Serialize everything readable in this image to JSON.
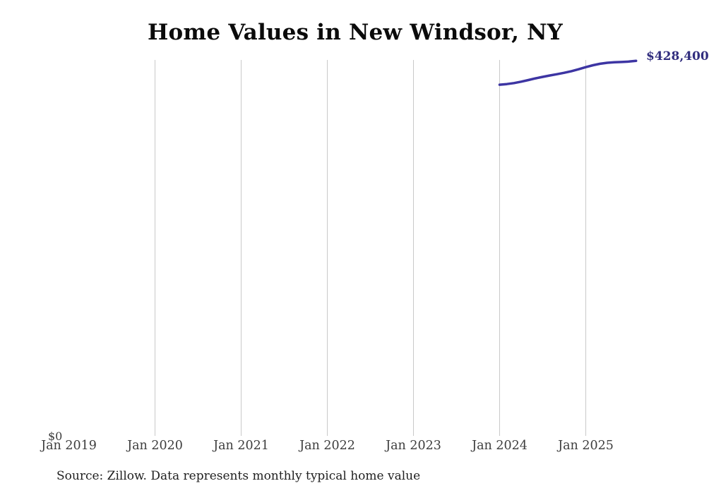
{
  "title": "Home Values in New Windsor, NY",
  "y_axis": {
    "zero_label": "$0"
  },
  "x_axis": {
    "ticks": [
      {
        "label": "Jan 2019",
        "year": 2019,
        "gridline": false
      },
      {
        "label": "Jan 2020",
        "year": 2020,
        "gridline": true
      },
      {
        "label": "Jan 2021",
        "year": 2021,
        "gridline": true
      },
      {
        "label": "Jan 2022",
        "year": 2022,
        "gridline": true
      },
      {
        "label": "Jan 2023",
        "year": 2023,
        "gridline": true
      },
      {
        "label": "Jan 2024",
        "year": 2024,
        "gridline": true
      },
      {
        "label": "Jan 2025",
        "year": 2025,
        "gridline": true
      }
    ]
  },
  "line": {
    "end_label": "$428,400"
  },
  "footer": {
    "source_note": "Source: Zillow. Data represents monthly typical home value"
  },
  "colors": {
    "line": "#3d35a3",
    "end_label": "#312d7e",
    "gridline": "#c9c9c9",
    "tick_text": "#3d3d3d",
    "title_text": "#0b0b0b",
    "source_text": "#1f1f1f",
    "background": "#ffffff"
  },
  "chart_data": {
    "type": "line",
    "title": "Home Values in New Windsor, NY",
    "xlabel": "",
    "ylabel": "",
    "x": [
      "Jan 2024",
      "Feb 2024",
      "Mar 2024",
      "Apr 2024",
      "May 2024",
      "Jun 2024",
      "Jul 2024",
      "Aug 2024",
      "Sep 2024",
      "Oct 2024",
      "Nov 2024",
      "Dec 2024",
      "Jan 2025",
      "Feb 2025",
      "Mar 2025",
      "Apr 2025",
      "May 2025",
      "Jun 2025",
      "Jul 2025",
      "Aug 2025"
    ],
    "series": [
      {
        "name": "Monthly typical home value",
        "values": [
          401200,
          401900,
          403000,
          404600,
          406500,
          408400,
          410100,
          411700,
          413200,
          414800,
          416600,
          418800,
          421200,
          423400,
          425100,
          426200,
          426800,
          427100,
          427600,
          428400
        ]
      }
    ],
    "end_value_label": "$428,400",
    "x_domain": [
      "Jan 2019",
      "Jan 2026"
    ],
    "x_tick_labels": [
      "Jan 2019",
      "Jan 2020",
      "Jan 2021",
      "Jan 2022",
      "Jan 2023",
      "Jan 2024",
      "Jan 2025"
    ],
    "ylim": [
      0,
      443000
    ],
    "y_tick_labels": [
      "$0"
    ],
    "grid": "vertical-only",
    "legend": "none",
    "notes": "Line covers only Jan 2024 through Aug 2025; y-axis starts at $0; end label clipped at right image edge"
  }
}
